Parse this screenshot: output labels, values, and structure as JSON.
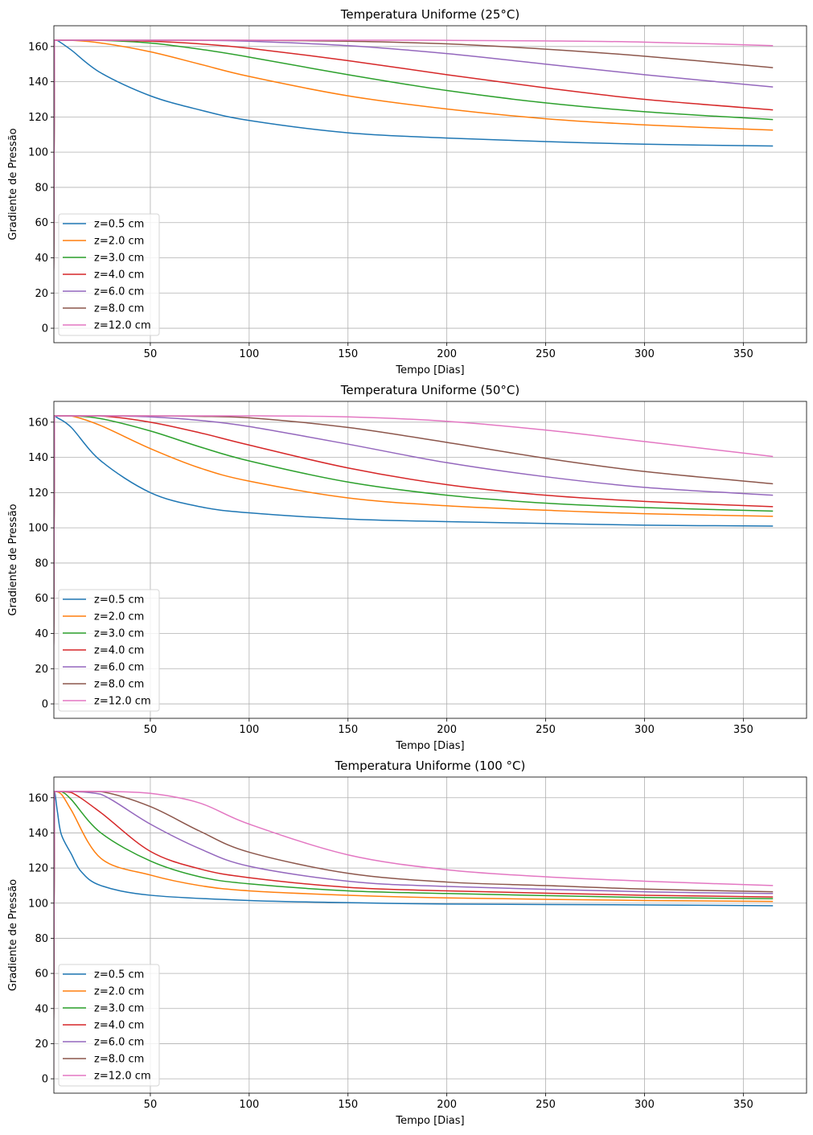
{
  "chart_data": [
    {
      "type": "line",
      "title": "Temperatura Uniforme (25°C)",
      "xlabel": "Tempo [Dias]",
      "ylabel": "Gradiente de Pressão",
      "xlim": [
        1.2,
        382
      ],
      "ylim": [
        -8.2,
        171.8
      ],
      "xticks": [
        50,
        100,
        150,
        200,
        250,
        300,
        350
      ],
      "yticks": [
        0,
        20,
        40,
        60,
        80,
        100,
        120,
        140,
        160
      ],
      "grid": true,
      "legend": "lower-left",
      "series": [
        {
          "name": "z=0.5 cm",
          "color": "#1f77b4",
          "points": [
            [
              1,
              0
            ],
            [
              1.5,
              163.6
            ],
            [
              3,
              163.4
            ],
            [
              10,
              158
            ],
            [
              25,
              145
            ],
            [
              50,
              132
            ],
            [
              75,
              124
            ],
            [
              100,
              118
            ],
            [
              150,
              111
            ],
            [
              200,
              108
            ],
            [
              250,
              106
            ],
            [
              300,
              104.5
            ],
            [
              365,
              103.5
            ]
          ]
        },
        {
          "name": "z=2.0 cm",
          "color": "#ff7f0e",
          "points": [
            [
              1,
              0
            ],
            [
              1.5,
              163.6
            ],
            [
              10,
              163.5
            ],
            [
              25,
              162
            ],
            [
              50,
              157
            ],
            [
              75,
              150
            ],
            [
              100,
              143
            ],
            [
              150,
              132
            ],
            [
              200,
              124.5
            ],
            [
              250,
              119
            ],
            [
              300,
              115.5
            ],
            [
              365,
              112.5
            ]
          ]
        },
        {
          "name": "z=3.0 cm",
          "color": "#2ca02c",
          "points": [
            [
              1,
              0
            ],
            [
              1.5,
              163.6
            ],
            [
              25,
              163.5
            ],
            [
              50,
              162
            ],
            [
              75,
              158.5
            ],
            [
              100,
              154
            ],
            [
              150,
              144
            ],
            [
              200,
              135
            ],
            [
              250,
              128
            ],
            [
              300,
              123
            ],
            [
              365,
              118.5
            ]
          ]
        },
        {
          "name": "z=4.0 cm",
          "color": "#d62728",
          "points": [
            [
              1,
              0
            ],
            [
              1.5,
              163.6
            ],
            [
              25,
              163.6
            ],
            [
              50,
              163
            ],
            [
              75,
              161.5
            ],
            [
              100,
              159
            ],
            [
              150,
              152
            ],
            [
              200,
              144
            ],
            [
              250,
              136.5
            ],
            [
              300,
              130
            ],
            [
              365,
              124
            ]
          ]
        },
        {
          "name": "z=6.0 cm",
          "color": "#9467bd",
          "points": [
            [
              1,
              0
            ],
            [
              1.5,
              163.6
            ],
            [
              50,
              163.6
            ],
            [
              75,
              163.5
            ],
            [
              100,
              163
            ],
            [
              150,
              160.5
            ],
            [
              200,
              156
            ],
            [
              250,
              150
            ],
            [
              300,
              144
            ],
            [
              365,
              137
            ]
          ]
        },
        {
          "name": "z=8.0 cm",
          "color": "#8c564b",
          "points": [
            [
              1,
              0
            ],
            [
              1.5,
              163.6
            ],
            [
              75,
              163.6
            ],
            [
              100,
              163.5
            ],
            [
              150,
              163
            ],
            [
              200,
              161.5
            ],
            [
              250,
              158.5
            ],
            [
              300,
              154.5
            ],
            [
              365,
              148
            ]
          ]
        },
        {
          "name": "z=12.0 cm",
          "color": "#e377c2",
          "points": [
            [
              1,
              0
            ],
            [
              1.5,
              163.6
            ],
            [
              150,
              163.6
            ],
            [
              200,
              163.5
            ],
            [
              250,
              163.2
            ],
            [
              300,
              162.5
            ],
            [
              365,
              160.5
            ]
          ]
        }
      ]
    },
    {
      "type": "line",
      "title": "Temperatura Uniforme (50°C)",
      "xlabel": "Tempo [Dias]",
      "ylabel": "Gradiente de Pressão",
      "xlim": [
        1.2,
        382
      ],
      "ylim": [
        -8.2,
        171.8
      ],
      "xticks": [
        50,
        100,
        150,
        200,
        250,
        300,
        350
      ],
      "yticks": [
        0,
        20,
        40,
        60,
        80,
        100,
        120,
        140,
        160
      ],
      "grid": true,
      "legend": "lower-left",
      "series": [
        {
          "name": "z=0.5 cm",
          "color": "#1f77b4",
          "points": [
            [
              1,
              0
            ],
            [
              1.5,
              163.6
            ],
            [
              3,
              162.5
            ],
            [
              10,
              157
            ],
            [
              25,
              138
            ],
            [
              50,
              120
            ],
            [
              75,
              112
            ],
            [
              100,
              108.5
            ],
            [
              150,
              105
            ],
            [
              200,
              103.5
            ],
            [
              250,
              102.5
            ],
            [
              300,
              101.5
            ],
            [
              365,
              101
            ]
          ]
        },
        {
          "name": "z=2.0 cm",
          "color": "#ff7f0e",
          "points": [
            [
              1,
              0
            ],
            [
              1.5,
              163.6
            ],
            [
              10,
              163.5
            ],
            [
              25,
              158
            ],
            [
              50,
              145
            ],
            [
              75,
              134
            ],
            [
              100,
              126.5
            ],
            [
              150,
              117
            ],
            [
              200,
              112.5
            ],
            [
              250,
              110
            ],
            [
              300,
              108
            ],
            [
              365,
              106.5
            ]
          ]
        },
        {
          "name": "z=3.0 cm",
          "color": "#2ca02c",
          "points": [
            [
              1,
              0
            ],
            [
              1.5,
              163.6
            ],
            [
              10,
              163.6
            ],
            [
              25,
              162
            ],
            [
              50,
              155
            ],
            [
              75,
              146
            ],
            [
              100,
              138
            ],
            [
              150,
              126
            ],
            [
              200,
              118.5
            ],
            [
              250,
              114
            ],
            [
              300,
              111.5
            ],
            [
              365,
              109.5
            ]
          ]
        },
        {
          "name": "z=4.0 cm",
          "color": "#d62728",
          "points": [
            [
              1,
              0
            ],
            [
              1.5,
              163.6
            ],
            [
              25,
              163.5
            ],
            [
              50,
              160
            ],
            [
              75,
              154
            ],
            [
              100,
              147
            ],
            [
              150,
              134
            ],
            [
              200,
              124.5
            ],
            [
              250,
              118.5
            ],
            [
              300,
              115
            ],
            [
              365,
              112
            ]
          ]
        },
        {
          "name": "z=6.0 cm",
          "color": "#9467bd",
          "points": [
            [
              1,
              0
            ],
            [
              1.5,
              163.6
            ],
            [
              25,
              163.6
            ],
            [
              50,
              163
            ],
            [
              75,
              161
            ],
            [
              100,
              157.5
            ],
            [
              150,
              147.5
            ],
            [
              200,
              137
            ],
            [
              250,
              129
            ],
            [
              300,
              123
            ],
            [
              365,
              118.5
            ]
          ]
        },
        {
          "name": "z=8.0 cm",
          "color": "#8c564b",
          "points": [
            [
              1,
              0
            ],
            [
              1.5,
              163.6
            ],
            [
              50,
              163.6
            ],
            [
              75,
              163.3
            ],
            [
              100,
              162.5
            ],
            [
              150,
              157
            ],
            [
              200,
              148.5
            ],
            [
              250,
              139.5
            ],
            [
              300,
              132
            ],
            [
              365,
              125
            ]
          ]
        },
        {
          "name": "z=12.0 cm",
          "color": "#e377c2",
          "points": [
            [
              1,
              0
            ],
            [
              1.5,
              163.6
            ],
            [
              100,
              163.6
            ],
            [
              150,
              163
            ],
            [
              200,
              160.5
            ],
            [
              250,
              155.5
            ],
            [
              300,
              149
            ],
            [
              365,
              140.5
            ]
          ]
        }
      ]
    },
    {
      "type": "line",
      "title": "Temperatura Uniforme (100 °C)",
      "xlabel": "Tempo [Dias]",
      "ylabel": "Gradiente de Pressão",
      "xlim": [
        1.2,
        382
      ],
      "ylim": [
        -8.2,
        171.8
      ],
      "xticks": [
        50,
        100,
        150,
        200,
        250,
        300,
        350
      ],
      "yticks": [
        0,
        20,
        40,
        60,
        80,
        100,
        120,
        140,
        160
      ],
      "grid": true,
      "legend": "lower-left",
      "series": [
        {
          "name": "z=0.5 cm",
          "color": "#1f77b4",
          "points": [
            [
              1,
              0
            ],
            [
              1.5,
              163.6
            ],
            [
              3,
              152
            ],
            [
              5,
              139
            ],
            [
              10,
              128
            ],
            [
              15,
              118
            ],
            [
              25,
              110
            ],
            [
              50,
              104.5
            ],
            [
              100,
              101.5
            ],
            [
              150,
              100.3
            ],
            [
              200,
              99.5
            ],
            [
              300,
              99
            ],
            [
              365,
              98.5
            ]
          ]
        },
        {
          "name": "z=2.0 cm",
          "color": "#ff7f0e",
          "points": [
            [
              1,
              0
            ],
            [
              1.5,
              163.6
            ],
            [
              5,
              162
            ],
            [
              10,
              153
            ],
            [
              25,
              125.5
            ],
            [
              50,
              116
            ],
            [
              75,
              110
            ],
            [
              100,
              107
            ],
            [
              150,
              104.5
            ],
            [
              200,
              103
            ],
            [
              300,
              101.5
            ],
            [
              365,
              101
            ]
          ]
        },
        {
          "name": "z=3.0 cm",
          "color": "#2ca02c",
          "points": [
            [
              1,
              0
            ],
            [
              1.5,
              163.6
            ],
            [
              5,
              163.5
            ],
            [
              10,
              159
            ],
            [
              25,
              140
            ],
            [
              50,
              124
            ],
            [
              75,
              115
            ],
            [
              100,
              111
            ],
            [
              150,
              107
            ],
            [
              200,
              105.5
            ],
            [
              300,
              103.2
            ],
            [
              365,
              102.5
            ]
          ]
        },
        {
          "name": "z=4.0 cm",
          "color": "#d62728",
          "points": [
            [
              1,
              0
            ],
            [
              1.5,
              163.6
            ],
            [
              10,
              163
            ],
            [
              25,
              151.5
            ],
            [
              50,
              129.5
            ],
            [
              75,
              119.5
            ],
            [
              100,
              114.5
            ],
            [
              150,
              109
            ],
            [
              200,
              107
            ],
            [
              300,
              104.5
            ],
            [
              365,
              103.5
            ]
          ]
        },
        {
          "name": "z=6.0 cm",
          "color": "#9467bd",
          "points": [
            [
              1,
              0
            ],
            [
              1.5,
              163.6
            ],
            [
              10,
              163.6
            ],
            [
              25,
              162
            ],
            [
              50,
              145
            ],
            [
              75,
              131
            ],
            [
              100,
              121
            ],
            [
              150,
              112.5
            ],
            [
              200,
              109.5
            ],
            [
              300,
              106.5
            ],
            [
              365,
              105.5
            ]
          ]
        },
        {
          "name": "z=8.0 cm",
          "color": "#8c564b",
          "points": [
            [
              1,
              0
            ],
            [
              1.5,
              163.6
            ],
            [
              25,
              163.5
            ],
            [
              50,
              155
            ],
            [
              75,
              141
            ],
            [
              100,
              129
            ],
            [
              150,
              117
            ],
            [
              200,
              112
            ],
            [
              250,
              110
            ],
            [
              300,
              108
            ],
            [
              365,
              106.5
            ]
          ]
        },
        {
          "name": "z=12.0 cm",
          "color": "#e377c2",
          "points": [
            [
              1,
              0
            ],
            [
              1.5,
              163.6
            ],
            [
              25,
              163.6
            ],
            [
              50,
              162.5
            ],
            [
              75,
              157
            ],
            [
              100,
              145
            ],
            [
              150,
              127.5
            ],
            [
              200,
              119
            ],
            [
              250,
              115
            ],
            [
              300,
              112.5
            ],
            [
              365,
              110
            ]
          ]
        }
      ]
    }
  ]
}
